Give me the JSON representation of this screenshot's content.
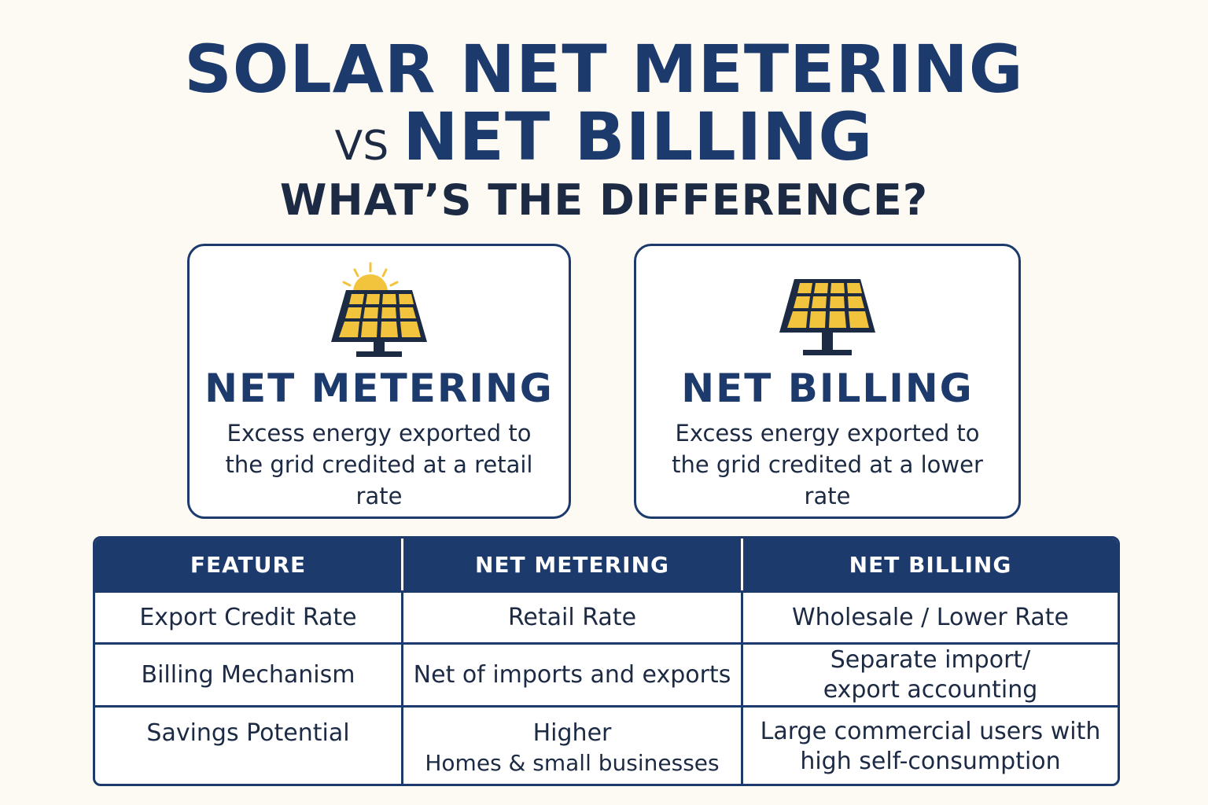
{
  "title": {
    "line1": "SOLAR NET METERING",
    "vs": "VS",
    "line2": "NET BILLING",
    "subtitle": "WHAT’S THE DIFFERENCE?"
  },
  "cards": [
    {
      "title": "NET METERING",
      "description": "Excess energy exported to the grid credited at a retail rate",
      "icon": "solar-panel-with-sun-icon"
    },
    {
      "title": "NET BILLING",
      "description": "Excess energy exported to the grid credited at a lower rate",
      "icon": "solar-panel-icon"
    }
  ],
  "table": {
    "headers": [
      "FEATURE",
      "NET METERING",
      "NET BILLING"
    ],
    "rows": [
      {
        "feature": "Export Credit Rate",
        "metering": "Retail Rate",
        "billing": "Wholesale / Lower Rate"
      },
      {
        "feature": "Billing Mechanism",
        "metering": "Net of imports and exports",
        "billing": "Separate import/ export accounting"
      },
      {
        "feature": "Savings Potential",
        "metering": "Higher",
        "metering_sub": "Homes & small businesses",
        "billing": "Large commercial users with high self-consumption"
      }
    ]
  },
  "colors": {
    "navy": "#1d3a6c",
    "panel_yellow": "#f2c43d",
    "background": "#fcfaf3"
  }
}
